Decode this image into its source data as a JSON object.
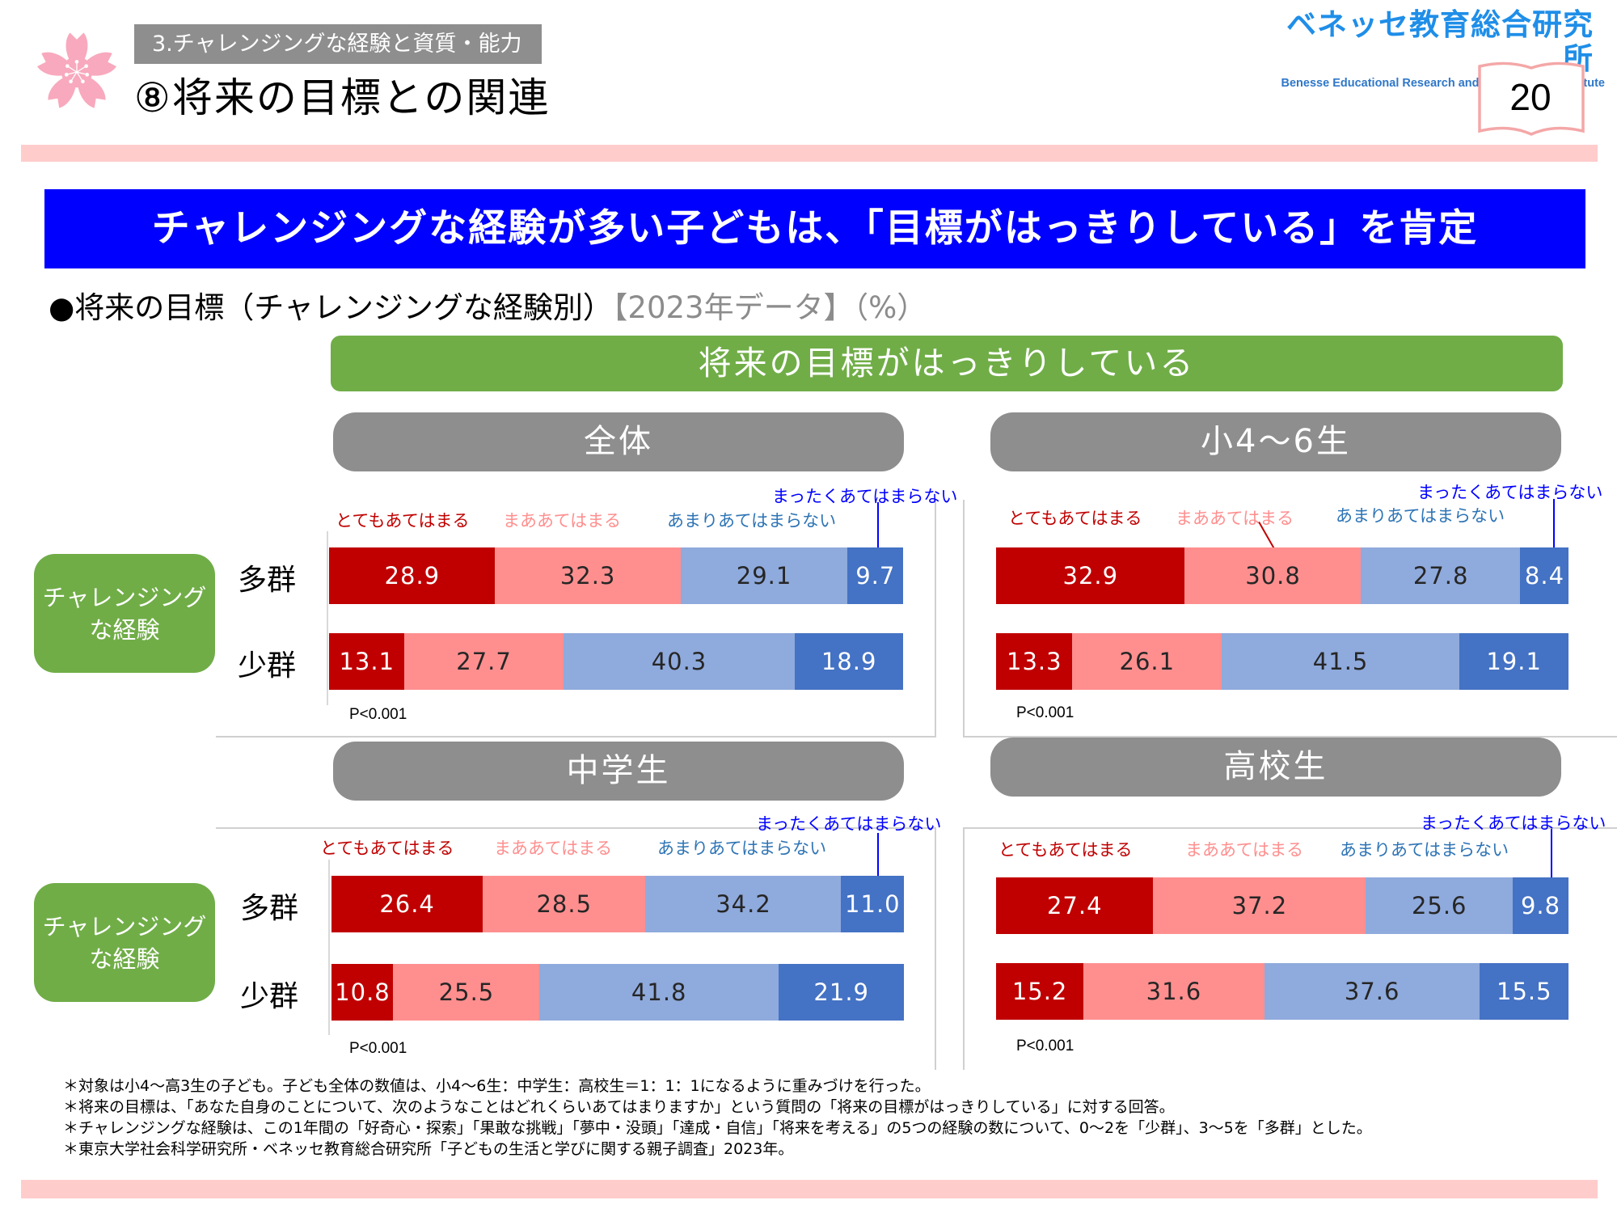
{
  "header": {
    "section_label": "3.チャレンジングな経験と資質・能力",
    "page_title": "⑧将来の目標との関連",
    "logo_jp": "ベネッセ教育総合研究所",
    "logo_en": "Benesse  Educational Research and Development Institute",
    "page_number": "20"
  },
  "banner": {
    "text": "チャレンジングな経験が多い子どもは、「目標がはっきりしている」を肯定"
  },
  "subtitle": {
    "main": "●将来の目標（チャレンジングな経験別）",
    "note": "【2023年データ】（%）"
  },
  "item_title": "将来の目標がはっきりしている",
  "group_box_label_line1": "チャレンジング",
  "group_box_label_line2": "な経験",
  "colors": {
    "strongly_agree": "#c00000",
    "agree": "#ff8f8f",
    "disagree": "#8faadc",
    "strongly_disagree": "#4472c4",
    "accent_green": "#70ad47",
    "banner_blue": "#0000ff"
  },
  "chart_data": [
    {
      "type": "bar",
      "orientation": "horizontal-stacked-100",
      "title": "全体",
      "categories": [
        "多群",
        "少群"
      ],
      "legend": [
        "とてもあてはまる",
        "まああてはまる",
        "あまりあてはまらない",
        "まったくあてはまらない"
      ],
      "series": [
        {
          "name": "とてもあてはまる",
          "values": [
            28.9,
            13.1
          ]
        },
        {
          "name": "まああてはまる",
          "values": [
            32.3,
            27.7
          ]
        },
        {
          "name": "あまりあてはまらない",
          "values": [
            29.1,
            40.3
          ]
        },
        {
          "name": "まったくあてはまらない",
          "values": [
            9.7,
            18.9
          ]
        }
      ],
      "value_labels": [
        [
          "28.9",
          "32.3",
          "29.1",
          "9.7"
        ],
        [
          "13.1",
          "27.7",
          "40.3",
          "18.9"
        ]
      ],
      "xlim": [
        0,
        100
      ],
      "annotation": "P<0.001"
    },
    {
      "type": "bar",
      "orientation": "horizontal-stacked-100",
      "title": "小4〜6生",
      "categories": [
        "多群",
        "少群"
      ],
      "legend": [
        "とてもあてはまる",
        "まああてはまる",
        "あまりあてはまらない",
        "まったくあてはまらない"
      ],
      "series": [
        {
          "name": "とてもあてはまる",
          "values": [
            32.9,
            13.3
          ]
        },
        {
          "name": "まああてはまる",
          "values": [
            30.8,
            26.1
          ]
        },
        {
          "name": "あまりあてはまらない",
          "values": [
            27.8,
            41.5
          ]
        },
        {
          "name": "まったくあてはまらない",
          "values": [
            8.4,
            19.1
          ]
        }
      ],
      "value_labels": [
        [
          "32.9",
          "30.8",
          "27.8",
          "8.4"
        ],
        [
          "13.3",
          "26.1",
          "41.5",
          "19.1"
        ]
      ],
      "xlim": [
        0,
        100
      ],
      "annotation": "P<0.001"
    },
    {
      "type": "bar",
      "orientation": "horizontal-stacked-100",
      "title": "中学生",
      "categories": [
        "多群",
        "少群"
      ],
      "legend": [
        "とてもあてはまる",
        "まああてはまる",
        "あまりあてはまらない",
        "まったくあてはまらない"
      ],
      "series": [
        {
          "name": "とてもあてはまる",
          "values": [
            26.4,
            10.8
          ]
        },
        {
          "name": "まああてはまる",
          "values": [
            28.5,
            25.5
          ]
        },
        {
          "name": "あまりあてはまらない",
          "values": [
            34.2,
            41.8
          ]
        },
        {
          "name": "まったくあてはまらない",
          "values": [
            11.0,
            21.9
          ]
        }
      ],
      "value_labels": [
        [
          "26.4",
          "28.5",
          "34.2",
          "11.0"
        ],
        [
          "10.8",
          "25.5",
          "41.8",
          "21.9"
        ]
      ],
      "xlim": [
        0,
        100
      ],
      "annotation": "P<0.001"
    },
    {
      "type": "bar",
      "orientation": "horizontal-stacked-100",
      "title": "高校生",
      "categories": [
        "多群",
        "少群"
      ],
      "legend": [
        "とてもあてはまる",
        "まああてはまる",
        "あまりあてはまらない",
        "まったくあてはまらない"
      ],
      "series": [
        {
          "name": "とてもあてはまる",
          "values": [
            27.4,
            15.2
          ]
        },
        {
          "name": "まああてはまる",
          "values": [
            37.2,
            31.6
          ]
        },
        {
          "name": "あまりあてはまらない",
          "values": [
            25.6,
            37.6
          ]
        },
        {
          "name": "まったくあてはまらない",
          "values": [
            9.8,
            15.5
          ]
        }
      ],
      "value_labels": [
        [
          "27.4",
          "37.2",
          "25.6",
          "9.8"
        ],
        [
          "15.2",
          "31.6",
          "37.6",
          "15.5"
        ]
      ],
      "xlim": [
        0,
        100
      ],
      "annotation": "P<0.001"
    }
  ],
  "footnotes": [
    "＊対象は小4〜高3生の子ども。子ども全体の数値は、小4〜6生：中学生：高校生＝1：1：1になるように重みづけを行った。",
    "＊将来の目標は、「あなた自身のことについて、次のようなことはどれくらいあてはまりますか」という質問の「将来の目標がはっきりしている」に対する回答。",
    "＊チャレンジングな経験は、この1年間の「好奇心・探索」「果敢な挑戦」「夢中・没頭」「達成・自信」「将来を考える」の5つの経験の数について、0〜2を「少群」、3〜5を「多群」とした。",
    "＊東京大学社会科学研究所・ベネッセ教育総合研究所「子どもの生活と学びに関する親子調査」2023年。"
  ]
}
